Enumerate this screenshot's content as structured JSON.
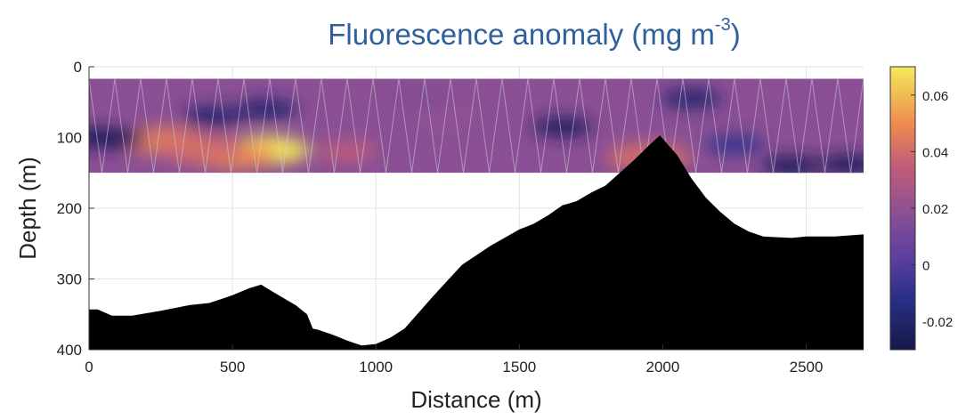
{
  "chart_data": {
    "type": "heatmap",
    "title": {
      "text": "Fluorescence anomaly (mg m",
      "unit_superscript": "-3",
      "close": ")"
    },
    "xlabel": "Distance (m)",
    "ylabel": "Depth (m)",
    "xlim": [
      0,
      2700
    ],
    "ylim": [
      0,
      400
    ],
    "y_reversed": true,
    "x_ticks": [
      "0",
      "500",
      "1000",
      "1500",
      "2000",
      "2500"
    ],
    "y_ticks": [
      "0",
      "100",
      "200",
      "300",
      "400"
    ],
    "grid": true,
    "data_depth_range": [
      17,
      150
    ],
    "colorbar": {
      "range": [
        -0.03,
        0.07
      ],
      "ticks": [
        "0.06",
        "0.04",
        "0.02",
        "0",
        "-0.02"
      ]
    },
    "colors": {
      "title": "#2f5f9c",
      "background_field": "#8a4f94",
      "seafloor": "#000000"
    },
    "bathymetry": {
      "x": [
        0,
        30,
        80,
        150,
        250,
        350,
        420,
        500,
        560,
        600,
        640,
        690,
        720,
        760,
        780,
        800,
        850,
        900,
        950,
        1000,
        1050,
        1100,
        1200,
        1300,
        1400,
        1500,
        1550,
        1600,
        1650,
        1700,
        1750,
        1800,
        1850,
        1900,
        1950,
        1990,
        2050,
        2100,
        2150,
        2200,
        2250,
        2300,
        2350,
        2400,
        2450,
        2500,
        2600,
        2700
      ],
      "depth": [
        343,
        343,
        352,
        352,
        345,
        337,
        334,
        323,
        313,
        308,
        318,
        330,
        337,
        350,
        370,
        372,
        379,
        387,
        394,
        392,
        383,
        370,
        324,
        280,
        253,
        230,
        222,
        210,
        196,
        190,
        178,
        168,
        150,
        132,
        112,
        97,
        125,
        158,
        185,
        205,
        222,
        233,
        240,
        241,
        242,
        240,
        240,
        237
      ]
    },
    "anomaly_field": [
      {
        "x": 620,
        "depth": 118,
        "value": 0.07
      },
      {
        "x": 500,
        "depth": 125,
        "value": 0.05
      },
      {
        "x": 260,
        "depth": 105,
        "value": 0.045
      },
      {
        "x": 400,
        "depth": 118,
        "value": 0.04
      },
      {
        "x": 900,
        "depth": 120,
        "value": 0.035
      },
      {
        "x": 1950,
        "depth": 128,
        "value": 0.04
      },
      {
        "x": 1250,
        "depth": 72,
        "value": 0.02
      },
      {
        "x": 1150,
        "depth": 45,
        "value": 0.015
      },
      {
        "x": 20,
        "depth": 100,
        "value": -0.025
      },
      {
        "x": 90,
        "depth": 102,
        "value": -0.025
      },
      {
        "x": 430,
        "depth": 70,
        "value": -0.02
      },
      {
        "x": 620,
        "depth": 60,
        "value": -0.02
      },
      {
        "x": 1650,
        "depth": 85,
        "value": -0.025
      },
      {
        "x": 2100,
        "depth": 45,
        "value": -0.02
      },
      {
        "x": 2450,
        "depth": 140,
        "value": -0.025
      },
      {
        "x": 2650,
        "depth": 138,
        "value": -0.025
      },
      {
        "x": 2250,
        "depth": 110,
        "value": -0.01
      }
    ]
  }
}
